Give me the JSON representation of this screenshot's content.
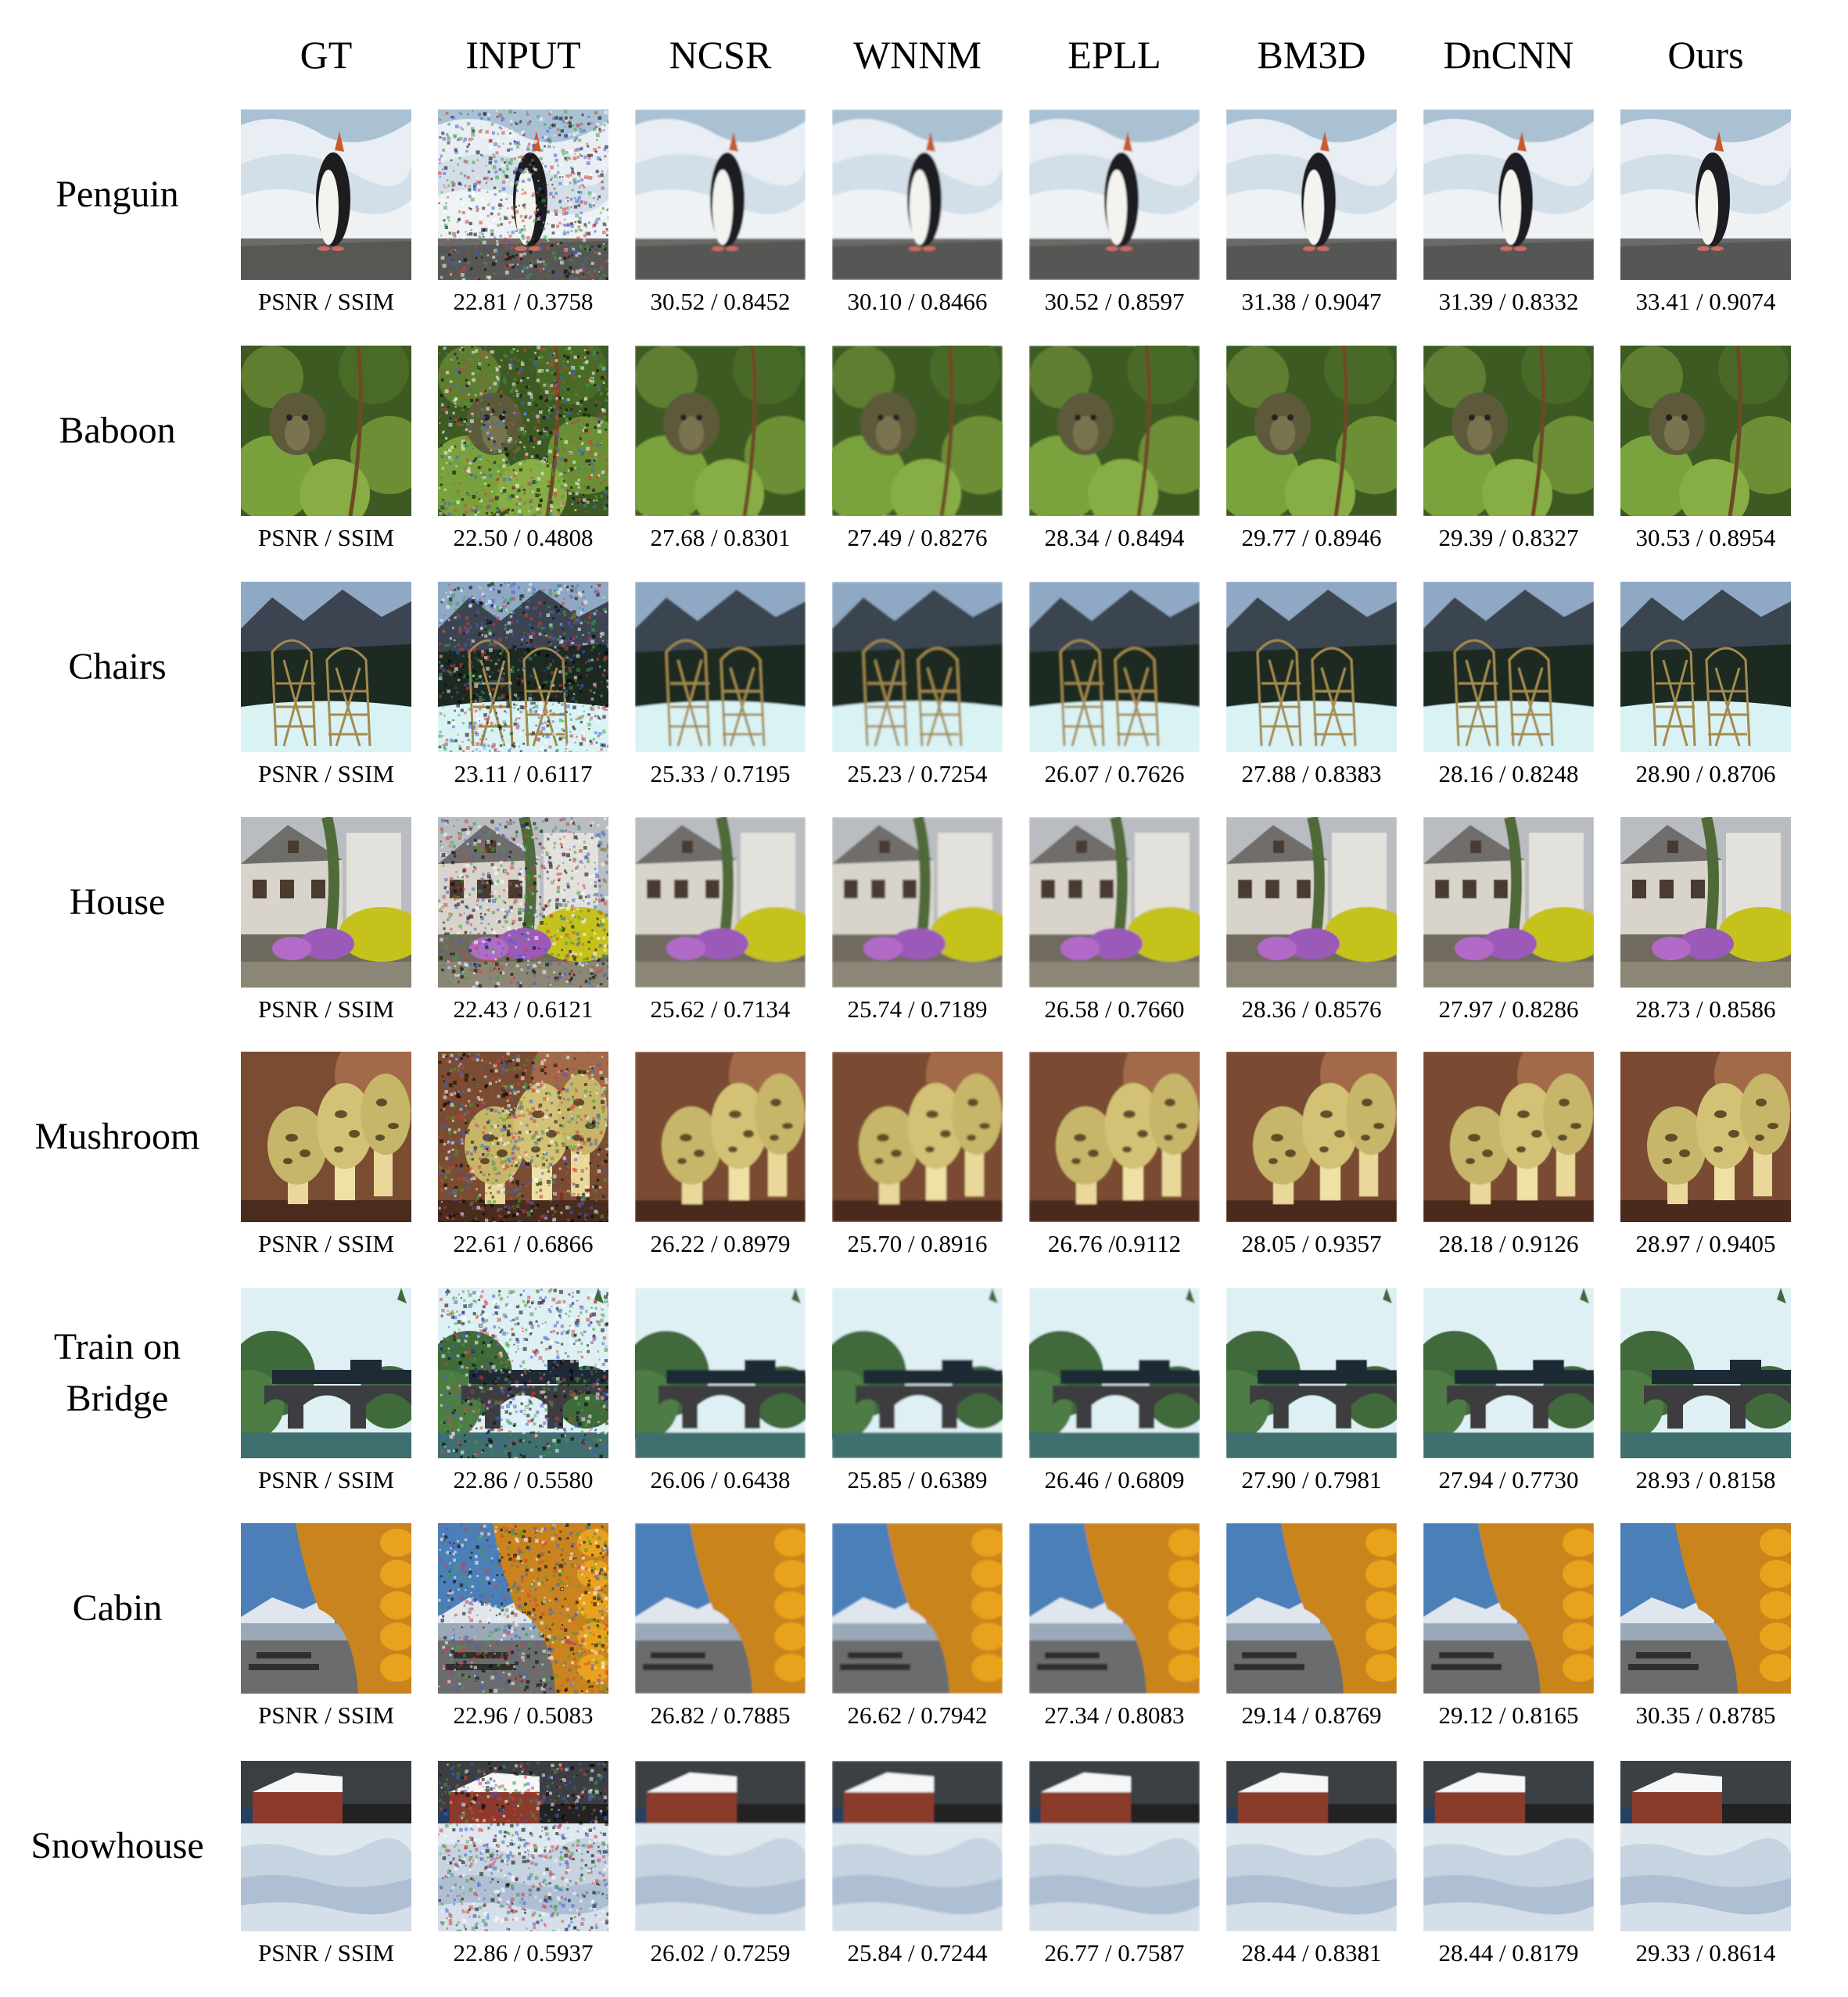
{
  "columns": [
    "GT",
    "INPUT",
    "NCSR",
    "WNNM",
    "EPLL",
    "BM3D",
    "DnCNN",
    "Ours"
  ],
  "rows": [
    {
      "label": "Penguin",
      "scene": "penguin",
      "metrics": [
        "PSNR / SSIM",
        "22.81 / 0.3758",
        "30.52 / 0.8452",
        "30.10 / 0.8466",
        "30.52 / 0.8597",
        "31.38 / 0.9047",
        "31.39 / 0.8332",
        "33.41 / 0.9074"
      ]
    },
    {
      "label": "Baboon",
      "scene": "baboon",
      "metrics": [
        "PSNR / SSIM",
        "22.50 / 0.4808",
        "27.68 / 0.8301",
        "27.49 / 0.8276",
        "28.34 / 0.8494",
        "29.77 / 0.8946",
        "29.39 / 0.8327",
        "30.53 / 0.8954"
      ]
    },
    {
      "label": "Chairs",
      "scene": "chairs",
      "metrics": [
        "PSNR / SSIM",
        "23.11 / 0.6117",
        "25.33 / 0.7195",
        "25.23 /   0.7254",
        "26.07 / 0.7626",
        "27.88 / 0.8383",
        "28.16 / 0.8248",
        "28.90 /  0.8706"
      ]
    },
    {
      "label": "House",
      "scene": "house",
      "metrics": [
        "PSNR / SSIM",
        "22.43 /  0.6121",
        "25.62 /  0.7134",
        "25.74 / 0.7189",
        "26.58 /  0.7660",
        "28.36 / 0.8576",
        "27.97 / 0.8286",
        "28.73 / 0.8586"
      ]
    },
    {
      "label": "Mushroom",
      "scene": "mushroom",
      "metrics": [
        "PSNR / SSIM",
        "22.61 / 0.6866",
        "26.22 / 0.8979",
        "25.70 / 0.8916",
        "26.76 /0.9112",
        "28.05 / 0.9357",
        "28.18 / 0.9126",
        "28.97 / 0.9405"
      ]
    },
    {
      "label": "Train on Bridge",
      "label_lines": [
        "Train on",
        "Bridge"
      ],
      "scene": "train",
      "metrics": [
        "PSNR / SSIM",
        "22.86 / 0.5580",
        "26.06 / 0.6438",
        "25.85 / 0.6389",
        "26.46 / 0.6809",
        "27.90 / 0.7981",
        "27.94 / 0.7730",
        "28.93 / 0.8158"
      ]
    },
    {
      "label": "Cabin",
      "scene": "cabin",
      "metrics": [
        "PSNR / SSIM",
        "22.96 / 0.5083",
        "26.82 / 0.7885",
        "26.62 / 0.7942",
        "27.34 / 0.8083",
        "29.14 / 0.8769",
        "29.12 / 0.8165",
        "30.35 / 0.8785"
      ]
    },
    {
      "label": "Snowhouse",
      "scene": "snowhouse",
      "metrics": [
        "PSNR / SSIM",
        "22.86 / 0.5937",
        "26.02 / 0.7259",
        "25.84 / 0.7244",
        "26.77 / 0.7587",
        "28.44 / 0.8381",
        "28.44 / 0.8179",
        "29.33 / 0.8614"
      ]
    }
  ]
}
